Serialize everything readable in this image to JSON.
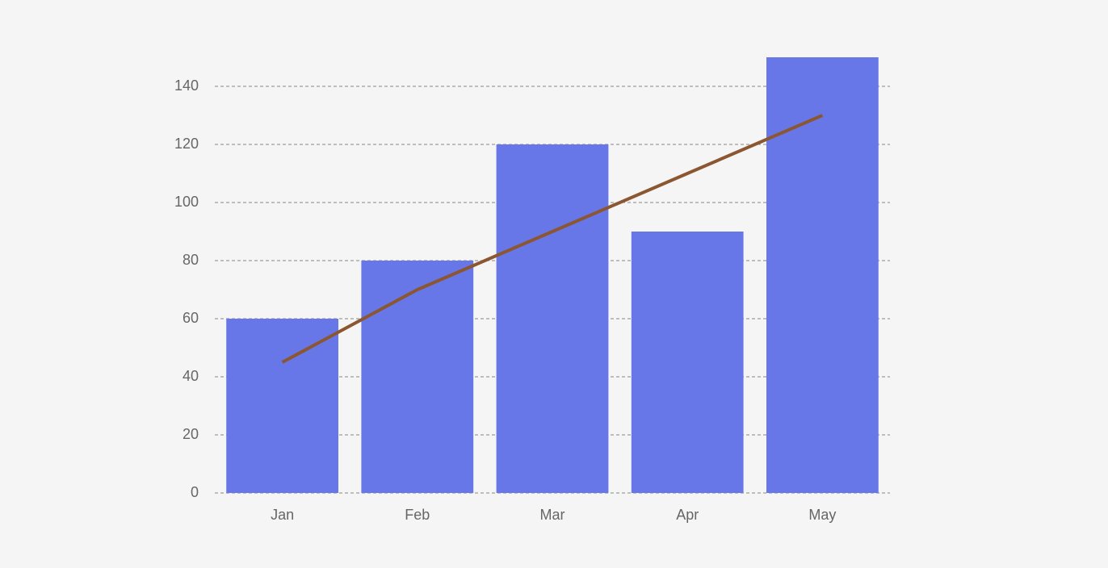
{
  "chart_data": {
    "type": "bar",
    "categories": [
      "Jan",
      "Feb",
      "Mar",
      "Apr",
      "May"
    ],
    "series": [
      {
        "type": "bar",
        "color": "#6877e8",
        "values": [
          60,
          80,
          120,
          90,
          150
        ]
      },
      {
        "type": "line",
        "color": "#8b5732",
        "values": [
          45,
          70,
          90,
          110,
          130
        ]
      }
    ],
    "ylim": [
      0,
      150
    ],
    "yticks": [
      0,
      20,
      40,
      60,
      80,
      100,
      120,
      140
    ],
    "grid": true
  }
}
